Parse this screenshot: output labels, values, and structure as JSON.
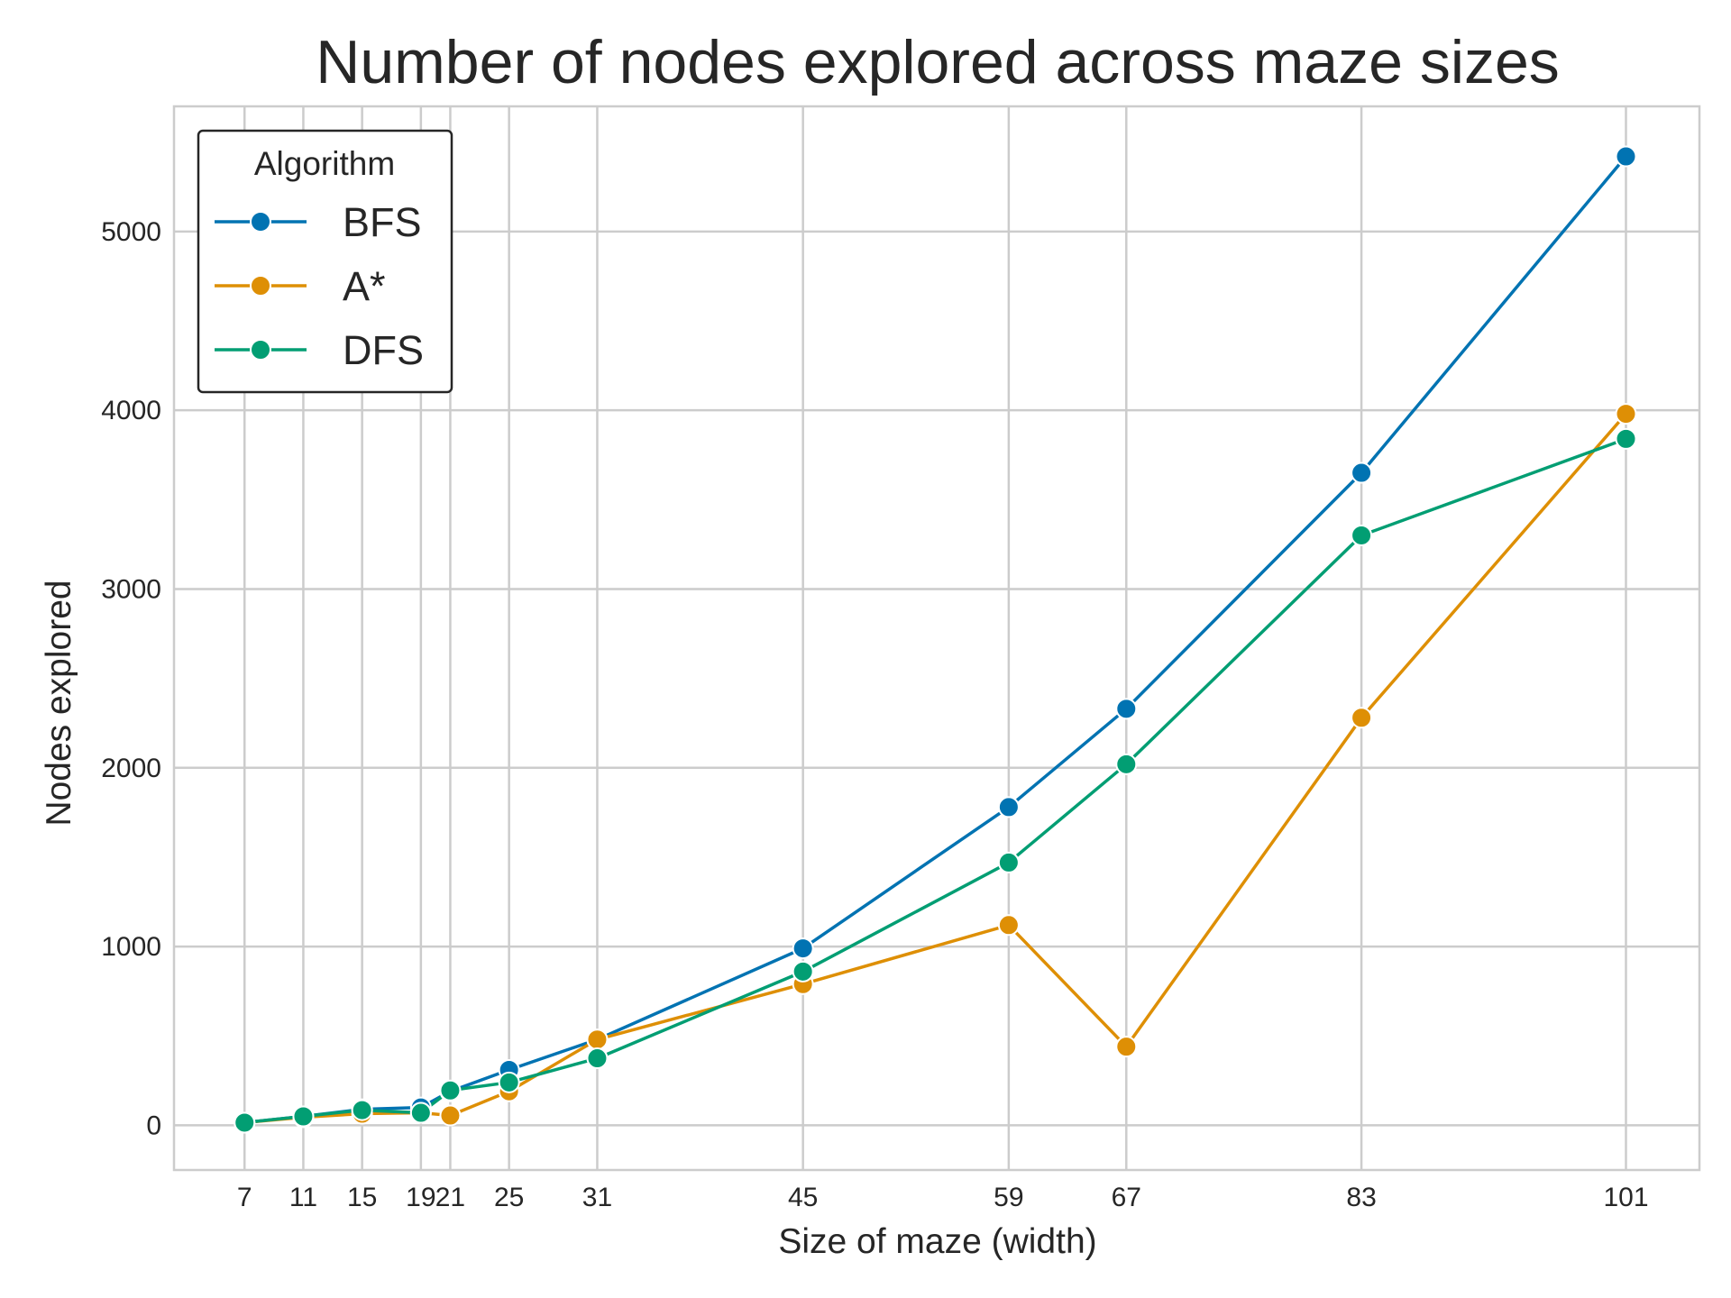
{
  "chart_data": {
    "type": "line",
    "title": "Number of nodes explored across maze sizes",
    "xlabel": "Size of maze (width)",
    "ylabel": "Nodes explored",
    "x": [
      7,
      11,
      15,
      19,
      21,
      25,
      31,
      45,
      59,
      67,
      83,
      101
    ],
    "xticks": [
      7,
      11,
      15,
      19,
      21,
      25,
      31,
      45,
      59,
      67,
      83,
      101
    ],
    "yticks": [
      0,
      1000,
      2000,
      3000,
      4000,
      5000
    ],
    "xlim": [
      2.2,
      106
    ],
    "ylim": [
      -250,
      5700
    ],
    "grid": true,
    "legend": {
      "title": "Algorithm",
      "position": "top-left"
    },
    "series": [
      {
        "name": "BFS",
        "color": "#0173B2",
        "values": [
          15,
          50,
          90,
          100,
          190,
          310,
          480,
          990,
          1780,
          2330,
          3650,
          5420
        ]
      },
      {
        "name": "A*",
        "color": "#DE8F05",
        "values": [
          15,
          45,
          65,
          70,
          55,
          190,
          480,
          790,
          1120,
          440,
          2280,
          3980
        ]
      },
      {
        "name": "DFS",
        "color": "#029E73",
        "values": [
          15,
          50,
          85,
          70,
          195,
          240,
          375,
          860,
          1470,
          2020,
          3300,
          3840
        ]
      }
    ]
  }
}
